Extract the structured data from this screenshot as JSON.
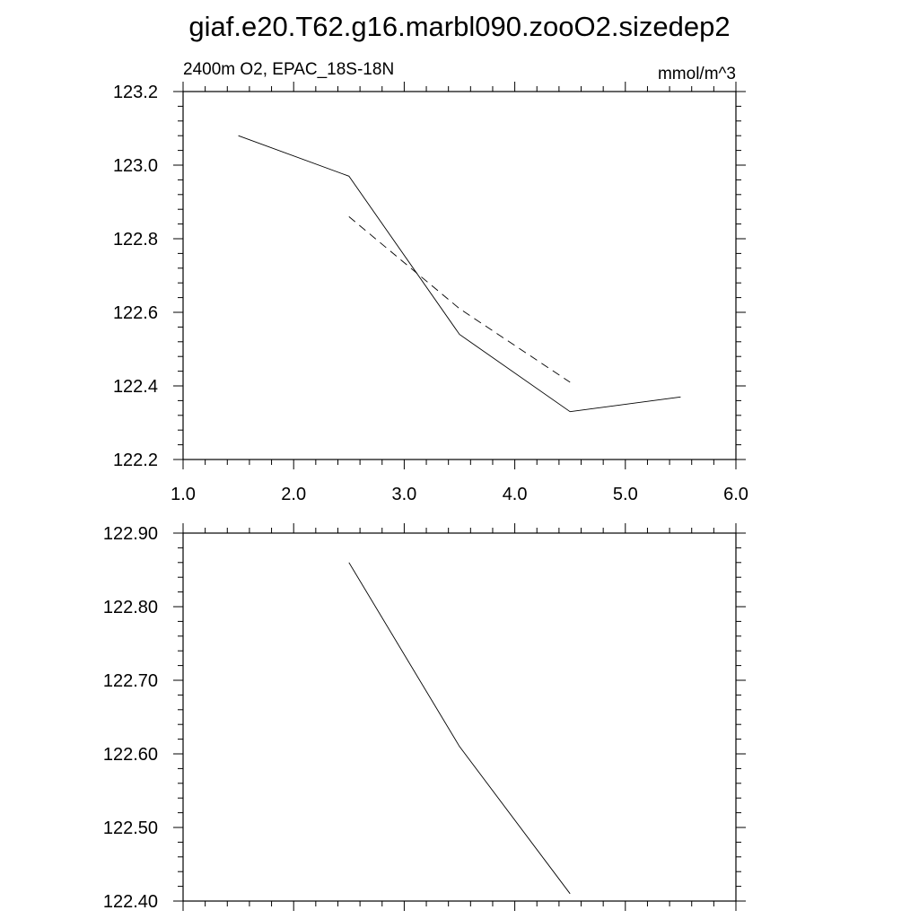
{
  "title": "giaf.e20.T62.g16.marbl090.zooO2.sizedep2",
  "chart_data": [
    {
      "type": "line",
      "subtitle_left": "2400m O2, EPAC_18S-18N",
      "subtitle_right": "mmol/m^3",
      "xlim": [
        1.0,
        6.0
      ],
      "ylim": [
        122.2,
        123.2
      ],
      "xticks": [
        "1.0",
        "2.0",
        "3.0",
        "4.0",
        "5.0",
        "6.0"
      ],
      "yticks": [
        "122.2",
        "122.4",
        "122.6",
        "122.8",
        "123.0",
        "123.2"
      ],
      "grid": false,
      "series": [
        {
          "style": "solid",
          "x": [
            1.5,
            2.5,
            3.5,
            4.5,
            5.5
          ],
          "y": [
            123.08,
            122.97,
            122.54,
            122.33,
            122.37
          ]
        },
        {
          "style": "dashed",
          "x": [
            2.5,
            3.5,
            4.5
          ],
          "y": [
            122.86,
            122.61,
            122.41
          ]
        }
      ]
    },
    {
      "type": "line",
      "xlim": [
        1.0,
        6.0
      ],
      "ylim": [
        122.4,
        122.9
      ],
      "yticks": [
        "122.40",
        "122.50",
        "122.60",
        "122.70",
        "122.80",
        "122.90"
      ],
      "grid": false,
      "series": [
        {
          "style": "solid",
          "x": [
            2.5,
            3.5,
            4.5
          ],
          "y": [
            122.86,
            122.61,
            122.41
          ]
        }
      ]
    }
  ]
}
